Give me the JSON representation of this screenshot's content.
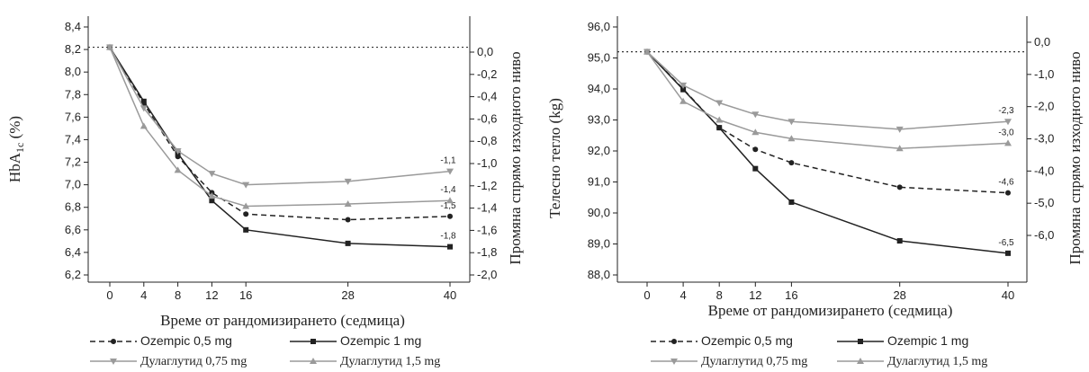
{
  "chart_data": [
    {
      "type": "line",
      "x": [
        0,
        4,
        8,
        12,
        16,
        28,
        40
      ],
      "x_ticks": [
        "0",
        "4",
        "8",
        "12",
        "16",
        "28",
        "40"
      ],
      "xlabel": "Време от рандомизирането (седмица)",
      "ylabel": "HbA1c (%)",
      "ylabel_main": "HbA",
      "ylabel_sub": "1c",
      "ylabel_tail": " (%)",
      "y_ticks": [
        "6,2",
        "6,4",
        "6,6",
        "6,8",
        "7,0",
        "7,2",
        "7,4",
        "7,6",
        "7,8",
        "8,0",
        "8,2",
        "8,4"
      ],
      "ylim": [
        6.2,
        8.4
      ],
      "y2label": "Промяна спрямо изходното ниво",
      "y2_ticks": [
        "0,0",
        "-0,2",
        "-0,4",
        "-0,6",
        "-0,8",
        "-1,0",
        "-1,2",
        "-1,4",
        "-1,6",
        "-1,8",
        "-2,0"
      ],
      "baseline": 8.22,
      "series": [
        {
          "name": "Ozempic 0,5 mg",
          "values": [
            8.22,
            7.72,
            7.25,
            6.93,
            6.74,
            6.69,
            6.72
          ],
          "end_label": "-1,5",
          "color": "#222222",
          "dash": "6,4",
          "marker": "circle"
        },
        {
          "name": "Ozempic 1 mg",
          "values": [
            8.22,
            7.74,
            7.28,
            6.86,
            6.6,
            6.48,
            6.45
          ],
          "end_label": "-1,8",
          "color": "#222222",
          "dash": "",
          "marker": "square"
        },
        {
          "name": "Дулаглутид 0,75 mg",
          "values": [
            8.22,
            7.68,
            7.3,
            7.1,
            7.0,
            7.03,
            7.12
          ],
          "end_label": "-1,1",
          "color": "#9a9a9a",
          "dash": "",
          "marker": "tri-down"
        },
        {
          "name": "Дулаглутид 1,5 mg",
          "values": [
            8.22,
            7.52,
            7.13,
            6.9,
            6.81,
            6.83,
            6.86
          ],
          "end_label": "-1,4",
          "color": "#9a9a9a",
          "dash": "",
          "marker": "tri-up"
        }
      ]
    },
    {
      "type": "line",
      "x": [
        0,
        4,
        8,
        12,
        16,
        28,
        40
      ],
      "x_ticks": [
        "0",
        "4",
        "8",
        "12",
        "16",
        "28",
        "40"
      ],
      "xlabel": "Време от рандомизирането (седмица)",
      "ylabel": "Телесно тегло (kg)",
      "y_ticks": [
        "88,0",
        "89,0",
        "90,0",
        "91,0",
        "92,0",
        "93,0",
        "94,0",
        "95,0",
        "96,0"
      ],
      "ylim": [
        88.0,
        96.0
      ],
      "y2label": "Промяна спрямо изходното ниво",
      "y2_ticks": [
        "0,0",
        "-1,0",
        "-2,0",
        "-3,0",
        "-4,0",
        "-5,0",
        "-6,0"
      ],
      "baseline": 95.2,
      "series": [
        {
          "name": "Ozempic 0,5 mg",
          "values": [
            95.2,
            94.0,
            92.75,
            92.05,
            91.62,
            90.83,
            90.65
          ],
          "end_label": "-4,6",
          "color": "#222222",
          "dash": "6,4",
          "marker": "circle"
        },
        {
          "name": "Ozempic 1 mg",
          "values": [
            95.2,
            93.98,
            92.75,
            91.43,
            90.35,
            89.1,
            88.7
          ],
          "end_label": "-6,5",
          "color": "#222222",
          "dash": "",
          "marker": "square"
        },
        {
          "name": "Дулаглутид 0,75 mg",
          "values": [
            95.2,
            94.12,
            93.55,
            93.18,
            92.95,
            92.7,
            92.95
          ],
          "end_label": "-2,3",
          "color": "#9a9a9a",
          "dash": "",
          "marker": "tri-down"
        },
        {
          "name": "Дулаглутид 1,5 mg",
          "values": [
            95.2,
            93.6,
            93.0,
            92.6,
            92.4,
            92.08,
            92.25
          ],
          "end_label": "-3,0",
          "color": "#9a9a9a",
          "dash": "",
          "marker": "tri-up"
        }
      ]
    }
  ],
  "legend": {
    "items": [
      {
        "label": "Ozempic 0,5 mg",
        "series_index": 0
      },
      {
        "label": "Ozempic 1 mg",
        "series_index": 1
      },
      {
        "label": "Дулаглутид 0,75 mg",
        "series_index": 2
      },
      {
        "label": "Дулаглутид 1,5 mg",
        "series_index": 3
      }
    ]
  }
}
